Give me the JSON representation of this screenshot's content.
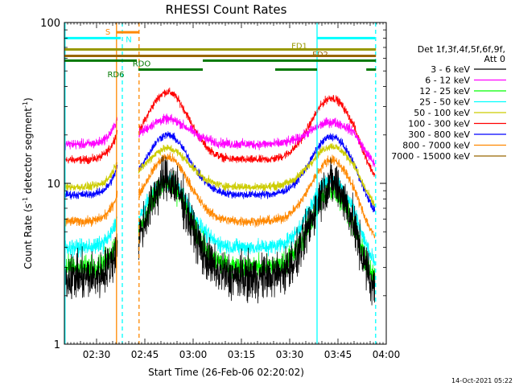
{
  "chart_data": {
    "type": "line",
    "title": "RHESSI Count Rates",
    "xlabel": "Start Time (26-Feb-06 02:20:02)",
    "ylabel_parts": [
      "Count Rate (s",
      "-1",
      " detector segment",
      "-1",
      ")"
    ],
    "yscale": "log",
    "ylim": [
      1,
      100
    ],
    "xlim_minutes": [
      0,
      100
    ],
    "x_ticks": [
      {
        "minute": 10,
        "label": "02:30"
      },
      {
        "minute": 25,
        "label": "02:45"
      },
      {
        "minute": 40,
        "label": "03:00"
      },
      {
        "minute": 55,
        "label": "03:15"
      },
      {
        "minute": 70,
        "label": "03:30"
      },
      {
        "minute": 85,
        "label": "03:45"
      },
      {
        "minute": 100,
        "label": "04:00"
      }
    ],
    "y_ticks": [
      {
        "value": 1,
        "label": "1"
      },
      {
        "value": 10,
        "label": "10"
      },
      {
        "value": 100,
        "label": "100"
      }
    ],
    "legend_header": [
      "Det 1f,3f,4f,5f,6f,9f,",
      "Att 0"
    ],
    "gaps_minutes": [
      [
        16.5,
        23.0
      ],
      [
        96.5,
        100
      ]
    ],
    "series": [
      {
        "name": "3 - 6 keV",
        "color": "#000000",
        "base": 2.6,
        "peak1": 10.5,
        "peak2": 10.0,
        "noise": 0.28
      },
      {
        "name": "6 - 12 keV",
        "color": "#ff00ff",
        "base": 17.5,
        "peak1": 25.0,
        "peak2": 24.0,
        "noise": 0.06
      },
      {
        "name": "12 - 25 keV",
        "color": "#00ff00",
        "base": 3.0,
        "peak1": 10.0,
        "peak2": 9.0,
        "noise": 0.14
      },
      {
        "name": "25 - 50 keV",
        "color": "#00ffff",
        "base": 4.0,
        "peak1": 10.5,
        "peak2": 10.5,
        "noise": 0.1
      },
      {
        "name": "50 - 100 keV",
        "color": "#cccc00",
        "base": 9.5,
        "peak1": 16.5,
        "peak2": 17.0,
        "noise": 0.05
      },
      {
        "name": "100 - 300 keV",
        "color": "#ff0000",
        "base": 14.0,
        "peak1": 37.0,
        "peak2": 34.0,
        "noise": 0.05
      },
      {
        "name": "300 - 800 keV",
        "color": "#0000ff",
        "base": 8.5,
        "peak1": 20.0,
        "peak2": 19.5,
        "noise": 0.05
      },
      {
        "name": "800 - 7000 keV",
        "color": "#ff8800",
        "base": 5.8,
        "peak1": 14.5,
        "peak2": 14.0,
        "noise": 0.06
      },
      {
        "name": "7000 - 15000 keV",
        "color": "#996600",
        "base": 0,
        "peak1": 0,
        "peak2": 0,
        "noise": 0
      }
    ],
    "vertical_lines": [
      {
        "minute": 0.2,
        "color": "#00ffff",
        "style": "solid"
      },
      {
        "minute": 16.2,
        "color": "#ff8800",
        "style": "solid"
      },
      {
        "minute": 18.0,
        "color": "#00ffff",
        "style": "dashed"
      },
      {
        "minute": 23.2,
        "color": "#ff8800",
        "style": "dashed"
      },
      {
        "minute": 78.5,
        "color": "#00ffff",
        "style": "solid"
      },
      {
        "minute": 96.7,
        "color": "#00ffff",
        "style": "dashed"
      }
    ],
    "flag_bars": [
      {
        "label": "S",
        "color": "#ff8800",
        "y": 87,
        "segments": [
          [
            16.2,
            23.2
          ]
        ],
        "label_minute": 13.5,
        "label_y": 88
      },
      {
        "label": "N",
        "color": "#00ffff",
        "y": 80,
        "segments": [
          [
            0,
            17.5
          ],
          [
            78.6,
            96.5
          ]
        ],
        "label_minute": 20.0,
        "label_y": 79
      },
      {
        "label": "FD1",
        "color": "#999900",
        "y": 68,
        "segments": [
          [
            0,
            96.8
          ]
        ],
        "label_minute": 73.0,
        "label_y": 72
      },
      {
        "label": "FD2",
        "color": "#996600",
        "y": 62,
        "segments": [
          [
            0,
            96.8
          ]
        ],
        "label_minute": 79.5,
        "label_y": 64
      },
      {
        "label": "RDO",
        "color": "#007700",
        "y": 58,
        "segments": [
          [
            0,
            22.5
          ],
          [
            43.0,
            96.8
          ]
        ],
        "label_minute": 24.0,
        "label_y": 56
      },
      {
        "label": "RD6",
        "color": "#007700",
        "y": 51,
        "segments": [
          [
            23.0,
            43.0
          ],
          [
            65.5,
            78.5
          ],
          [
            93.8,
            96.8
          ]
        ],
        "label_minute": 16.0,
        "label_y": 48
      }
    ],
    "timestamp": "14-Oct-2021 05:22"
  }
}
